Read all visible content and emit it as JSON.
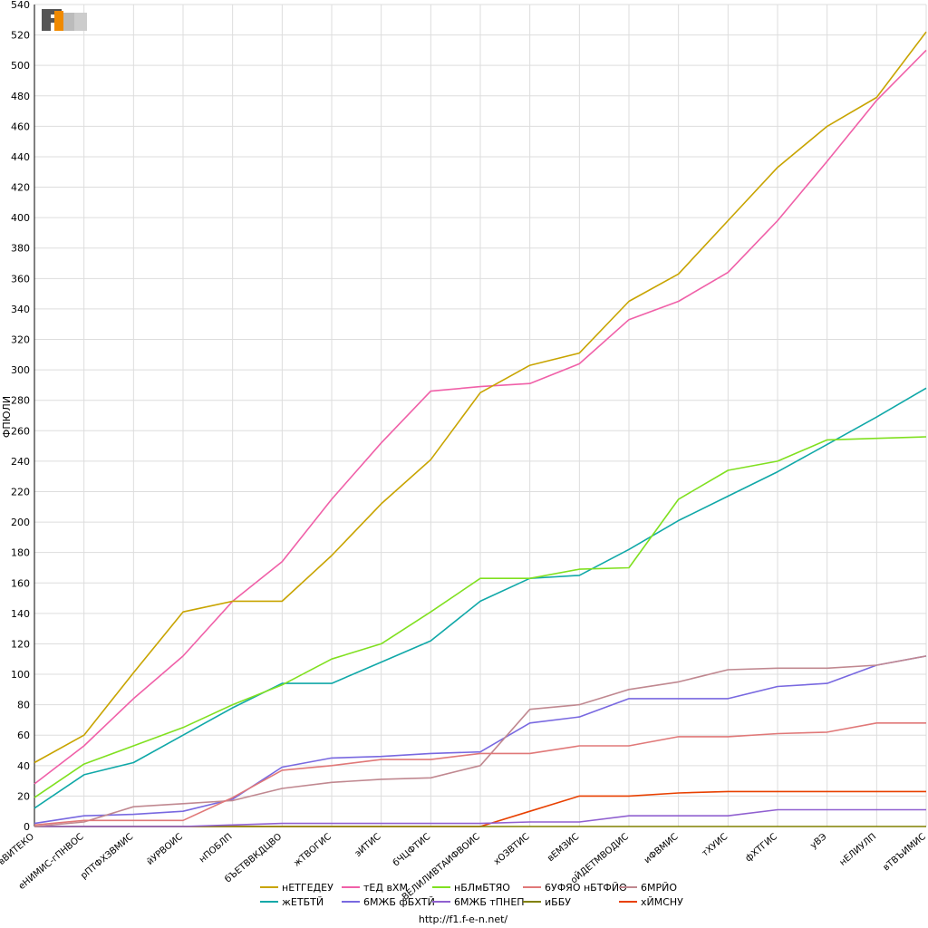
{
  "chart_data": {
    "type": "line",
    "ylabel": "ФПЮЛИ",
    "ylim": [
      0,
      540
    ],
    "yticks": [
      0,
      20,
      40,
      60,
      80,
      100,
      120,
      140,
      160,
      180,
      200,
      220,
      240,
      260,
      280,
      300,
      320,
      340,
      360,
      380,
      400,
      420,
      440,
      460,
      480,
      500,
      520,
      540
    ],
    "grid": true,
    "legend_position": "bottom",
    "categories": [
      "вВИТЕКО",
      "еНИМИС-гПНВОС",
      "рПТФХЗВМИС",
      "йУРВОИС",
      "нПОБЛП",
      "бЪЕТВВКДЦВО",
      "жТВОГИС",
      "эИТИС",
      "бЧЦФТИС",
      "ВЕЛИЛИВТАИФВОИС",
      "хОЗВТИС",
      "вЕМЗИС",
      "оЙДЕТМВОДИС",
      "иФВМИС",
      "тХУИС",
      "фХТГИС",
      "уВЭ",
      "нЕЛИУЛП",
      "вТВЪИМИС"
    ],
    "series": [
      {
        "name": "нЕТГЕДЕУ",
        "color": "#c8a400",
        "values": [
          42,
          60,
          101,
          141,
          148,
          148,
          178,
          212,
          241,
          285,
          303,
          311,
          345,
          363,
          398,
          433,
          460,
          479,
          522
        ]
      },
      {
        "name": "тЕД вХМ",
        "color": "#f060a8",
        "values": [
          28,
          53,
          84,
          112,
          148,
          174,
          215,
          252,
          286,
          289,
          291,
          304,
          333,
          345,
          364,
          398,
          437,
          477,
          510
        ]
      },
      {
        "name": "нБЛмБТЯО",
        "color": "#80e020",
        "values": [
          19,
          41,
          53,
          65,
          80,
          93,
          110,
          120,
          141,
          163,
          163,
          169,
          170,
          215,
          234,
          240,
          254,
          255,
          256
        ]
      },
      {
        "name": "6УФЯО нБТФЙО",
        "color": "#e07878",
        "values": [
          1,
          4,
          4,
          4,
          19,
          37,
          40,
          44,
          44,
          48,
          48,
          53,
          53,
          59,
          59,
          61,
          62,
          68,
          68
        ]
      },
      {
        "name": "6МРЙО",
        "color": "#c08890",
        "values": [
          0,
          3,
          13,
          15,
          17,
          25,
          29,
          31,
          32,
          40,
          77,
          80,
          90,
          95,
          103,
          104,
          104,
          106,
          112
        ]
      },
      {
        "name": "жЕТБТЙ",
        "color": "#10a8a8",
        "values": [
          12,
          34,
          42,
          60,
          78,
          94,
          94,
          108,
          122,
          148,
          163,
          165,
          182,
          201,
          217,
          233,
          251,
          269,
          288
        ]
      },
      {
        "name": "6МЖБ фБХТЙ",
        "color": "#7868e0",
        "values": [
          2,
          7,
          8,
          10,
          18,
          39,
          45,
          46,
          48,
          49,
          68,
          72,
          84,
          84,
          84,
          92,
          94,
          106,
          112
        ]
      },
      {
        "name": "6МЖБ тПНЕП",
        "color": "#9060d0",
        "values": [
          0,
          0,
          0,
          0,
          1,
          2,
          2,
          2,
          2,
          2,
          3,
          3,
          7,
          7,
          7,
          11,
          11,
          11,
          11
        ]
      },
      {
        "name": "иББУ",
        "color": "#808000",
        "values": [
          0,
          0,
          0,
          0,
          0,
          0,
          0,
          0,
          0,
          0,
          0,
          0,
          0,
          0,
          0,
          0,
          0,
          0,
          0
        ]
      },
      {
        "name": "хЙМСНУ",
        "color": "#e84000",
        "values": [
          0,
          0,
          0,
          0,
          0,
          0,
          0,
          0,
          0,
          0,
          10,
          20,
          20,
          22,
          23,
          23,
          23,
          23,
          23
        ]
      }
    ]
  },
  "footer": {
    "url": "http://f1.f-e-n.net/"
  },
  "logo": {
    "text": "F1EN",
    "icon": "f1en-logo"
  }
}
